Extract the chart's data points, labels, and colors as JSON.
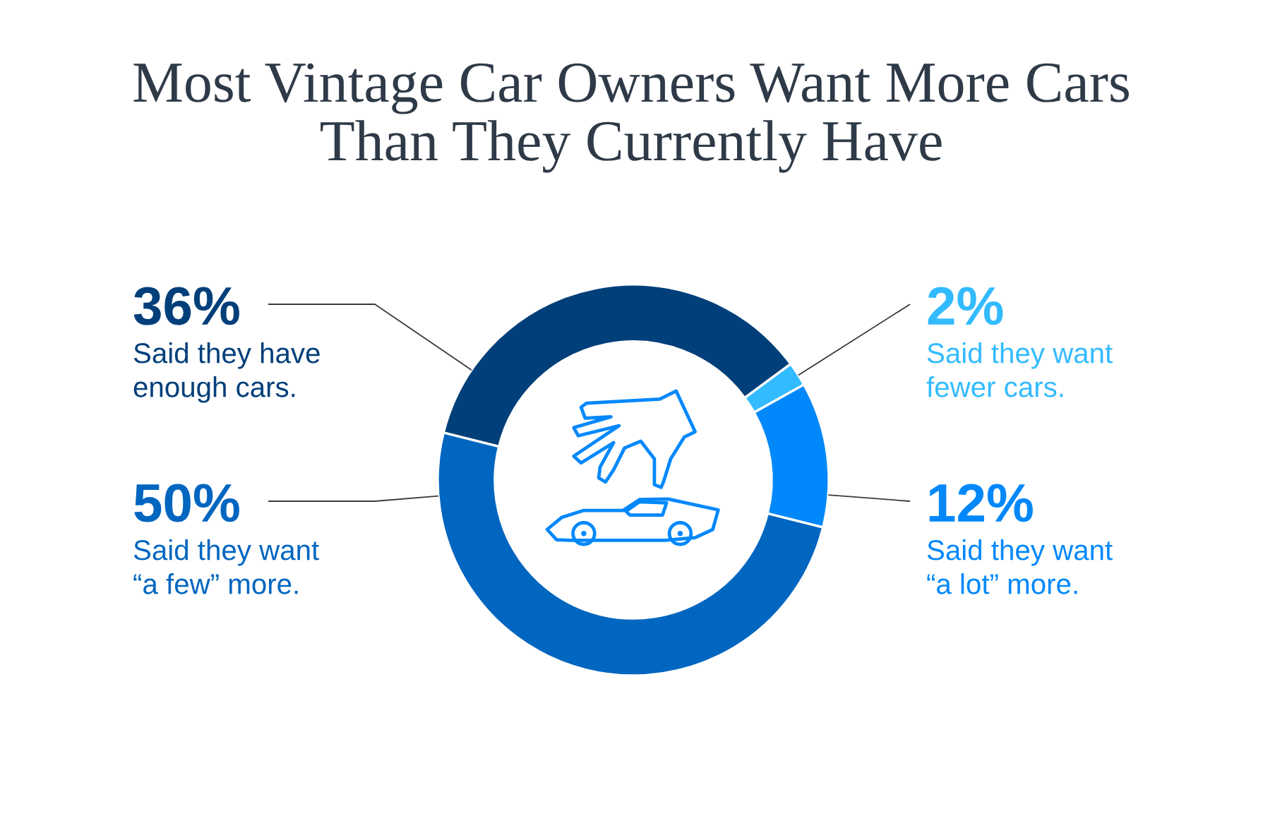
{
  "chart_data": {
    "type": "donut",
    "title": "Most Vintage Car Owners Want More Cars\nThan They Currently Have",
    "categories": [
      "Said they have\nenough cars.",
      "Said they want\nfewer cars.",
      "Said they want\n“a lot” more.",
      "Said they want\n“a few” more."
    ],
    "values": [
      36,
      2,
      12,
      50
    ],
    "value_labels": [
      "36%",
      "2%",
      "12%",
      "50%"
    ],
    "colors": [
      "#003f7a",
      "#33bbff",
      "#0088fb",
      "#0066c0"
    ]
  }
}
